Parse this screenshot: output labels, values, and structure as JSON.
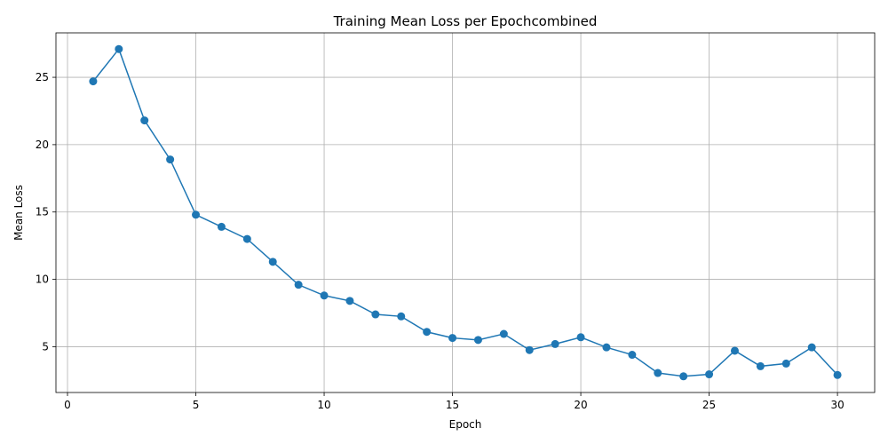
{
  "chart_data": {
    "type": "line",
    "title": "Training Mean Loss per Epochcombined",
    "xlabel": "Epoch",
    "ylabel": "Mean Loss",
    "xlim": [
      -0.45,
      31.45
    ],
    "ylim": [
      1.6,
      28.3
    ],
    "xticks": [
      0,
      5,
      10,
      15,
      20,
      25,
      30
    ],
    "yticks": [
      5,
      10,
      15,
      20,
      25
    ],
    "grid": true,
    "marker": "circle",
    "color": "#1f77b4",
    "x": [
      1,
      2,
      3,
      4,
      5,
      6,
      7,
      8,
      9,
      10,
      11,
      12,
      13,
      14,
      15,
      16,
      17,
      18,
      19,
      20,
      21,
      22,
      23,
      24,
      25,
      26,
      27,
      28,
      29,
      30
    ],
    "series": [
      {
        "values": [
          24.7,
          27.1,
          21.8,
          18.9,
          14.8,
          13.9,
          13.0,
          11.3,
          9.6,
          8.8,
          8.4,
          7.4,
          7.25,
          6.1,
          5.65,
          5.5,
          5.95,
          4.75,
          5.2,
          5.7,
          4.95,
          4.4,
          3.05,
          2.8,
          2.95,
          4.7,
          3.55,
          3.75,
          4.95,
          2.9
        ]
      }
    ]
  }
}
